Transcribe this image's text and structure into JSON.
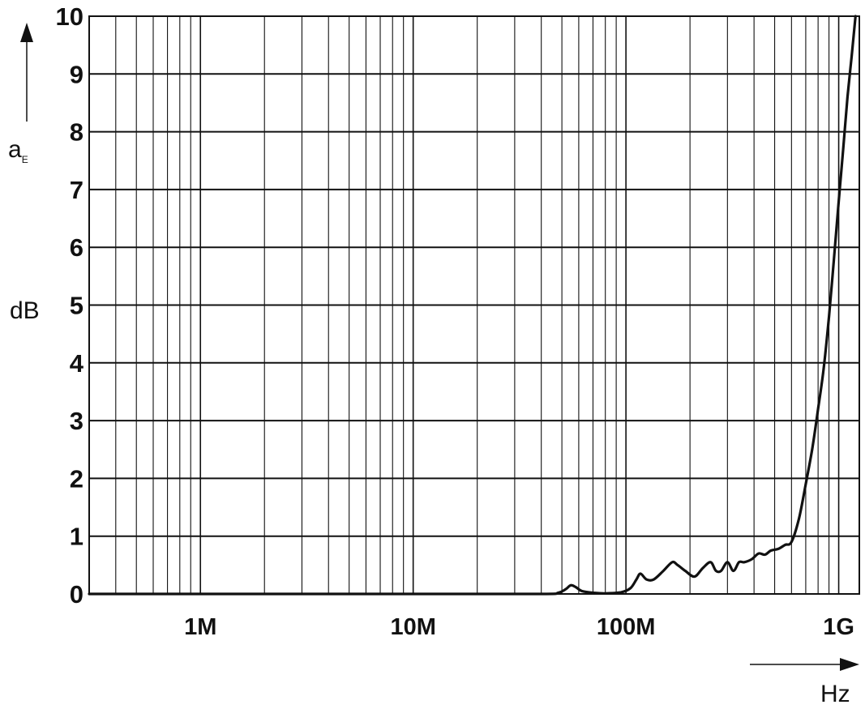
{
  "chart_data": {
    "type": "line",
    "title": "",
    "ylabel": "a",
    "ylabel_subscript": "E",
    "ylabel_unit": "dB",
    "xlabel_unit": "Hz",
    "x_scale": "log",
    "xlim": [
      300000,
      1250000000
    ],
    "ylim": [
      0,
      10
    ],
    "grid": true,
    "yticks": [
      0,
      1,
      2,
      3,
      4,
      5,
      6,
      7,
      8,
      9,
      10
    ],
    "ytick_labels": [
      "0",
      "1",
      "2",
      "3",
      "4",
      "5",
      "6",
      "7",
      "8",
      "9",
      "10"
    ],
    "xticks": [
      1000000,
      10000000,
      100000000,
      1000000000
    ],
    "xtick_labels": [
      "1M",
      "10M",
      "100M",
      "1G"
    ],
    "series": [
      {
        "x": [
          300000,
          1000000,
          10000000,
          40000000,
          48000000,
          52000000,
          55000000,
          58000000,
          62000000,
          70000000,
          80000000,
          95000000,
          105000000,
          112000000,
          117000000,
          125000000,
          135000000,
          150000000,
          165000000,
          175000000,
          190000000,
          210000000,
          230000000,
          250000000,
          265000000,
          280000000,
          300000000,
          320000000,
          340000000,
          360000000,
          390000000,
          420000000,
          450000000,
          480000000,
          520000000,
          560000000,
          600000000,
          650000000,
          700000000,
          750000000,
          800000000,
          850000000,
          900000000,
          950000000,
          1000000000,
          1050000000,
          1100000000,
          1150000000,
          1200000000
        ],
        "y": [
          0.0,
          0.0,
          0.0,
          0.0,
          0.02,
          0.08,
          0.15,
          0.12,
          0.05,
          0.02,
          0.01,
          0.03,
          0.1,
          0.25,
          0.35,
          0.25,
          0.25,
          0.4,
          0.55,
          0.5,
          0.4,
          0.3,
          0.45,
          0.55,
          0.4,
          0.4,
          0.55,
          0.4,
          0.55,
          0.55,
          0.6,
          0.7,
          0.68,
          0.75,
          0.78,
          0.85,
          0.9,
          1.3,
          1.9,
          2.5,
          3.2,
          3.9,
          4.8,
          5.8,
          6.8,
          7.7,
          8.6,
          9.3,
          10.0
        ]
      }
    ]
  }
}
